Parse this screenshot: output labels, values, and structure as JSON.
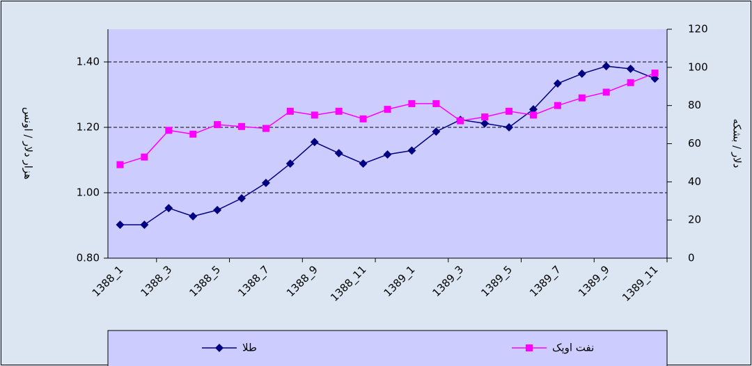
{
  "chart_data": {
    "type": "line",
    "categories": [
      "1388_1",
      null,
      "1388_3",
      null,
      "1388_5",
      null,
      "1388_7",
      null,
      "1388_9",
      null,
      "1388_11",
      null,
      "1389_1",
      null,
      "1389_3",
      null,
      "1389_5",
      null,
      "1389_7",
      null,
      "1389_9",
      null,
      "1389_11"
    ],
    "series": [
      {
        "name": "طلا",
        "color": "#000080",
        "values": [
          0.902,
          0.902,
          0.953,
          0.928,
          0.947,
          0.983,
          1.03,
          1.089,
          1.155,
          1.121,
          1.089,
          1.117,
          1.129,
          1.187,
          1.223,
          1.212,
          1.2,
          1.255,
          1.334,
          1.364,
          1.387,
          1.379,
          1.349
        ]
      },
      {
        "name": "نفت اوپک",
        "color": "#ff00ff",
        "axis": "y2",
        "values": [
          49,
          53,
          67,
          65,
          70,
          69,
          68,
          77,
          75,
          77,
          73,
          78,
          81,
          81,
          72,
          74,
          77,
          75,
          80,
          84,
          87,
          92,
          97
        ]
      }
    ],
    "ylabel": "هزار دلار / اونس",
    "y2label": "دلار / بشکه",
    "ylim": [
      0.8,
      1.5
    ],
    "yticks": [
      {
        "value": 0.8,
        "label": "0.80"
      },
      {
        "value": 1.0,
        "label": "1.00"
      },
      {
        "value": 1.2,
        "label": "1.20"
      },
      {
        "value": 1.4,
        "label": "1.40"
      }
    ],
    "y2lim": [
      0,
      120
    ],
    "y2ticks": [
      0,
      20,
      40,
      60,
      80,
      100,
      120
    ],
    "grid": true
  }
}
